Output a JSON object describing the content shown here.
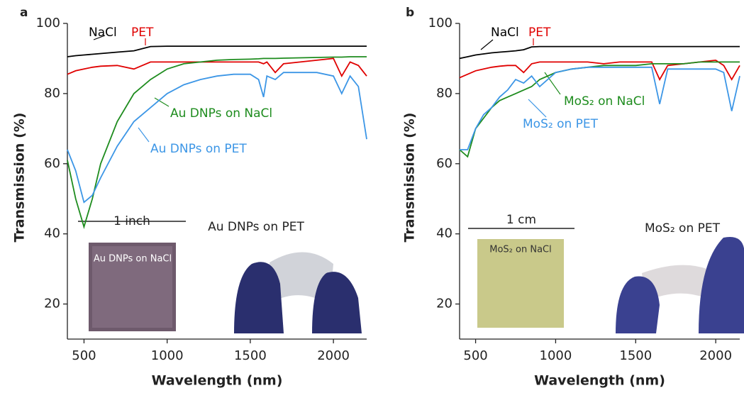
{
  "chart_data": [
    {
      "type": "line",
      "panel": "a",
      "xlabel": "Wavelength (nm)",
      "ylabel": "Transmission (%)",
      "xlim": [
        400,
        2200
      ],
      "ylim": [
        10,
        100
      ],
      "xticks": [
        500,
        1000,
        1500,
        2000
      ],
      "yticks": [
        20,
        40,
        60,
        80,
        100
      ],
      "x": [
        400,
        450,
        500,
        550,
        600,
        700,
        800,
        900,
        1000,
        1100,
        1200,
        1300,
        1400,
        1500,
        1550,
        1580,
        1600,
        1650,
        1700,
        1800,
        1900,
        2000,
        2050,
        2100,
        2150,
        2200
      ],
      "series": [
        {
          "name": "NaCl",
          "color": "#000000",
          "values": [
            90.5,
            90.8,
            91,
            91.2,
            91.4,
            91.8,
            92.2,
            93.4,
            93.5,
            93.5,
            93.5,
            93.5,
            93.5,
            93.5,
            93.5,
            93.5,
            93.5,
            93.5,
            93.5,
            93.5,
            93.5,
            93.5,
            93.5,
            93.5,
            93.5,
            93.5
          ]
        },
        {
          "name": "PET",
          "color": "#e00000",
          "values": [
            85.5,
            86.5,
            87,
            87.5,
            87.8,
            88,
            87,
            89,
            89,
            89,
            89,
            89,
            89,
            89,
            89,
            88.5,
            89,
            86,
            88.5,
            89,
            89.5,
            90,
            85,
            89,
            88,
            85
          ]
        },
        {
          "name": "Au DNPs on NaCl",
          "color": "#1e8c1e",
          "values": [
            61,
            50,
            42,
            50,
            60,
            72,
            80,
            84,
            87,
            88.5,
            89,
            89.5,
            89.7,
            89.8,
            89.9,
            90,
            90,
            90,
            90.1,
            90.2,
            90.3,
            90.4,
            90.4,
            90.5,
            90.5,
            90.5
          ]
        },
        {
          "name": "Au DNPs on PET",
          "color": "#3c96e6",
          "values": [
            64,
            58,
            49,
            51,
            56,
            65,
            72,
            76,
            80,
            82.5,
            84,
            85,
            85.5,
            85.5,
            84,
            79,
            85,
            84,
            86,
            86,
            86,
            85,
            80,
            85,
            82,
            67
          ]
        }
      ],
      "annotations": [
        "1 inch",
        "Au DNPs on NaCl",
        "Au DNPs on PET"
      ]
    },
    {
      "type": "line",
      "panel": "b",
      "xlabel": "Wavelength (nm)",
      "ylabel": "Transmission (%)",
      "xlim": [
        400,
        2150
      ],
      "ylim": [
        10,
        100
      ],
      "xticks": [
        500,
        1000,
        1500,
        2000
      ],
      "yticks": [
        20,
        40,
        60,
        80,
        100
      ],
      "x": [
        400,
        450,
        500,
        550,
        600,
        650,
        700,
        750,
        800,
        850,
        900,
        1000,
        1100,
        1200,
        1300,
        1400,
        1500,
        1600,
        1650,
        1700,
        1800,
        1900,
        2000,
        2050,
        2100,
        2150
      ],
      "series": [
        {
          "name": "NaCl",
          "color": "#000000",
          "values": [
            90,
            90.5,
            91,
            91.3,
            91.6,
            91.8,
            92,
            92.2,
            92.5,
            93.3,
            93.4,
            93.4,
            93.4,
            93.4,
            93.4,
            93.4,
            93.4,
            93.4,
            93.4,
            93.4,
            93.4,
            93.4,
            93.4,
            93.4,
            93.4,
            93.4
          ]
        },
        {
          "name": "PET",
          "color": "#e00000",
          "values": [
            84.5,
            85.5,
            86.5,
            87,
            87.5,
            87.8,
            88,
            88,
            86,
            88.5,
            89,
            89,
            89,
            89,
            88.5,
            89,
            89,
            89,
            84,
            88,
            88.5,
            89,
            89.5,
            88,
            84,
            88
          ]
        },
        {
          "name": "MoS₂ on NaCl",
          "color": "#1e8c1e",
          "values": [
            64,
            62,
            70,
            73,
            76,
            78,
            79,
            80,
            81,
            82,
            84,
            86,
            87,
            87.5,
            88,
            88,
            88,
            88.5,
            88.5,
            88.5,
            88.5,
            89,
            89,
            89,
            89,
            89
          ]
        },
        {
          "name": "MoS₂ on PET",
          "color": "#3c96e6",
          "values": [
            64,
            64,
            70,
            74,
            76,
            79,
            81,
            84,
            83,
            85,
            82,
            86,
            87,
            87.5,
            87.5,
            87.5,
            87.5,
            87.5,
            77,
            87,
            87,
            87,
            87,
            86,
            75,
            85
          ]
        }
      ],
      "annotations": [
        "1 cm",
        "MoS₂ on NaCl",
        "MoS₂ on PET"
      ]
    }
  ]
}
